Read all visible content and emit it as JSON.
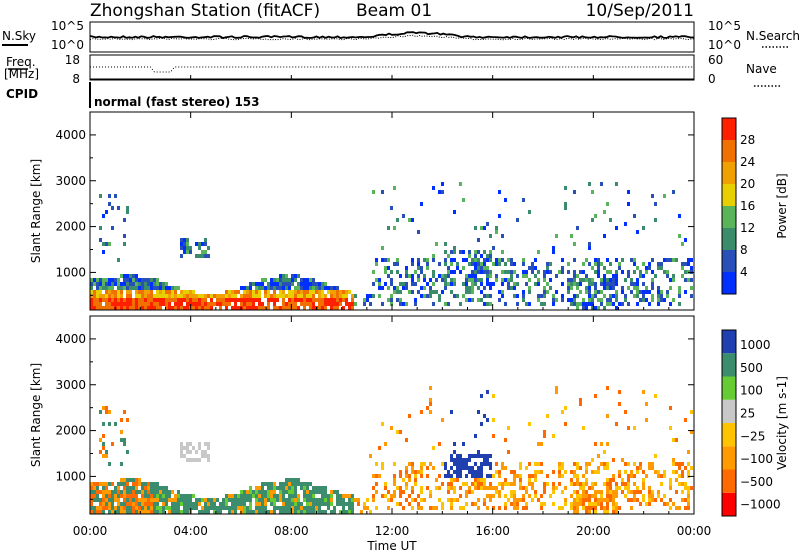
{
  "header": {
    "station": "Zhongshan Station (fitACF)",
    "beam": "Beam 01",
    "date": "10/Sep/2011"
  },
  "status_panels": {
    "nsky_label": "N.Sky",
    "nsky_top": "10^5",
    "nsky_bottom": "10^0",
    "nsearch_label": "N.Search",
    "nsearch_top": "10^5",
    "nsearch_bottom": "10^0",
    "freq_label_1": "Freq.",
    "freq_label_2": "[MHz]",
    "freq_top": "18",
    "freq_bottom": "8",
    "nave_label": "Nave",
    "nave_top": "60",
    "nave_bottom": "0",
    "cpid_label": "CPID",
    "cpid_text": "normal (fast stereo) 153"
  },
  "colors": {
    "power": [
      "#0030ff",
      "#2850b8",
      "#3a8c6a",
      "#5ab45a",
      "#e8d000",
      "#f0a000",
      "#f07000",
      "#ff2000"
    ],
    "velocity": [
      "#ff0000",
      "#ff6a00",
      "#ff9a00",
      "#ffc400",
      "#c8c8c8",
      "#66cc33",
      "#3c8c6e",
      "#2040b0"
    ]
  },
  "chart_data": [
    {
      "type": "heatmap",
      "quantity": "power",
      "ylabel": "Slant Range [km]",
      "ylim": [
        180,
        4500
      ],
      "yticks": [
        "1000",
        "2000",
        "3000",
        "4000"
      ],
      "xlim": [
        "00:00",
        "24:00"
      ],
      "colorbar": {
        "label": "Power [dB]",
        "ticks": [
          "4",
          "8",
          "12",
          "16",
          "20",
          "24",
          "28"
        ],
        "range": [
          0,
          30
        ]
      }
    },
    {
      "type": "heatmap",
      "quantity": "velocity",
      "ylabel": "Slant Range [km]",
      "ylim": [
        180,
        4500
      ],
      "yticks": [
        "1000",
        "2000",
        "3000",
        "4000"
      ],
      "xlim": [
        "00:00",
        "24:00"
      ],
      "xlabel": "Time UT",
      "xticks": [
        "00:00",
        "04:00",
        "08:00",
        "12:00",
        "16:00",
        "20:00",
        "00:00"
      ],
      "colorbar": {
        "label": "Velocity [m s-1]",
        "ticks": [
          "1000",
          "500",
          "100",
          "25",
          "−25",
          "−100",
          "−500",
          "−1000"
        ]
      }
    }
  ]
}
